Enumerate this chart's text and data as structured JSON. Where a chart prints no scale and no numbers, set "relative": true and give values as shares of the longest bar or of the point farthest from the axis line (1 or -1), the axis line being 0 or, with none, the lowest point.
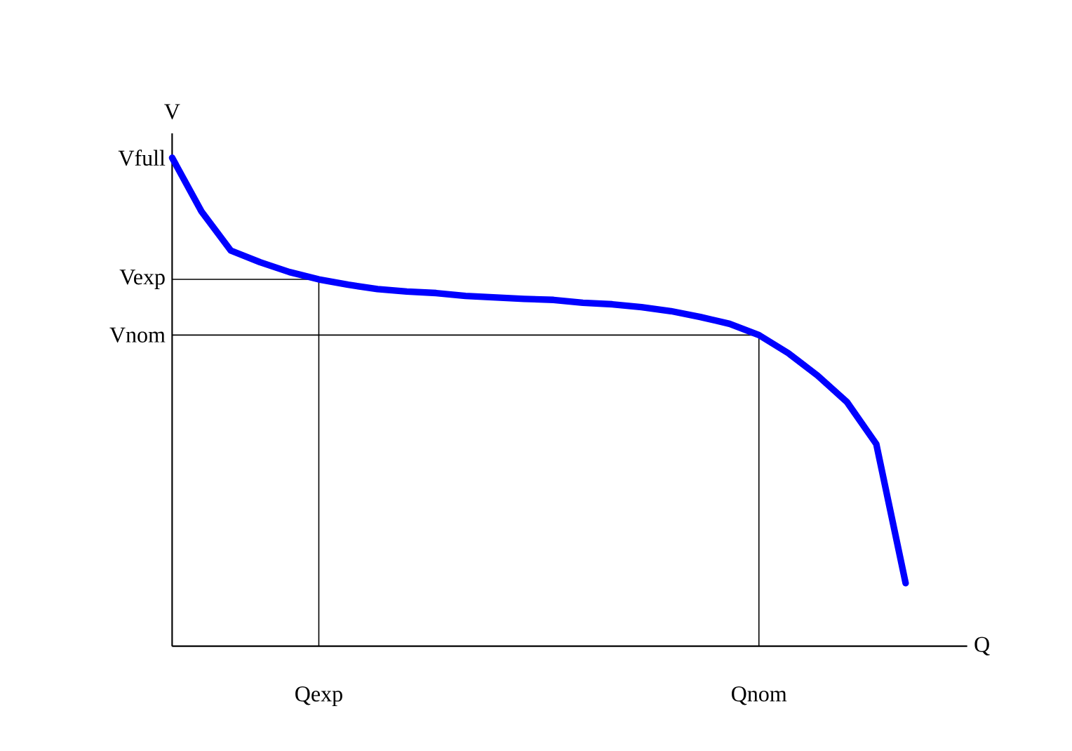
{
  "chart_data": {
    "type": "line",
    "xlabel": "Q",
    "ylabel": "V",
    "relative": true,
    "categories": [
      null,
      null,
      null,
      null,
      null,
      "Qexp",
      null,
      null,
      null,
      null,
      null,
      null,
      null,
      null,
      null,
      null,
      null,
      null,
      null,
      null,
      "Qnom",
      null,
      null,
      null,
      null,
      null
    ],
    "series": [
      {
        "color": "#0000ff",
        "values": [
          1.0,
          0.89,
          0.81,
          0.786,
          0.766,
          0.751,
          0.74,
          0.731,
          0.726,
          0.723,
          0.717,
          0.714,
          0.711,
          0.709,
          0.703,
          0.7,
          0.694,
          0.686,
          0.674,
          0.66,
          0.637,
          0.6,
          0.554,
          0.5,
          0.414,
          0.129
        ]
      }
    ],
    "annotations": [
      "Vfull"
    ],
    "ref_lines": [
      {
        "axis": "y",
        "value": 0.751,
        "label": "Vexp"
      },
      {
        "axis": "y",
        "value": 0.637,
        "label": "Vnom"
      },
      {
        "axis": "x",
        "value": "Qexp"
      },
      {
        "axis": "x",
        "value": "Qnom"
      }
    ],
    "marker": "none",
    "line_style": "solid"
  }
}
